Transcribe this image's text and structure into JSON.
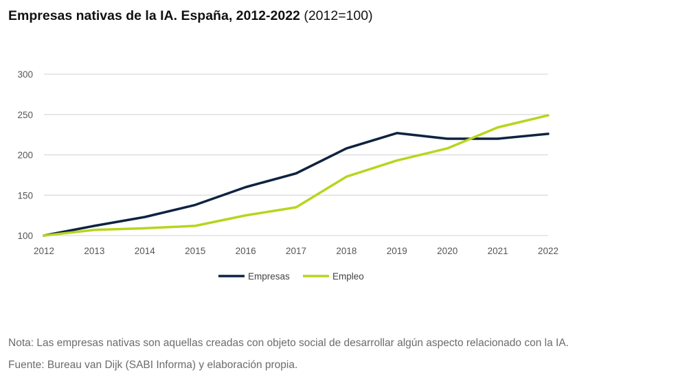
{
  "header": {
    "title_bold": "Empresas nativas de la IA. España, 2012-2022",
    "title_suffix": "(2012=100)"
  },
  "footer": {
    "note": "Nota: Las empresas nativas son aquellas creadas con objeto social de desarrollar algún aspecto relacionado con la IA.",
    "source": "Fuente: Bureau van Dijk (SABI Informa) y elaboración propia."
  },
  "chart_data": {
    "type": "line",
    "title": "Empresas nativas de la IA. España, 2012-2022 (2012=100)",
    "xlabel": "",
    "ylabel": "",
    "categories": [
      "2012",
      "2013",
      "2014",
      "2015",
      "2016",
      "2017",
      "2018",
      "2019",
      "2020",
      "2021",
      "2022"
    ],
    "y_ticks": [
      "100",
      "150",
      "200",
      "250",
      "300"
    ],
    "ylim": [
      100,
      300
    ],
    "grid": true,
    "legend_position": "bottom-center",
    "series": [
      {
        "name": "Empresas",
        "color": "#0e2340",
        "values": [
          100,
          112,
          123,
          138,
          160,
          177,
          208,
          227,
          220,
          220,
          226
        ]
      },
      {
        "name": "Empleo",
        "color": "#b9d41c",
        "values": [
          100,
          107,
          109,
          112,
          125,
          135,
          173,
          193,
          208,
          234,
          249
        ]
      }
    ]
  }
}
